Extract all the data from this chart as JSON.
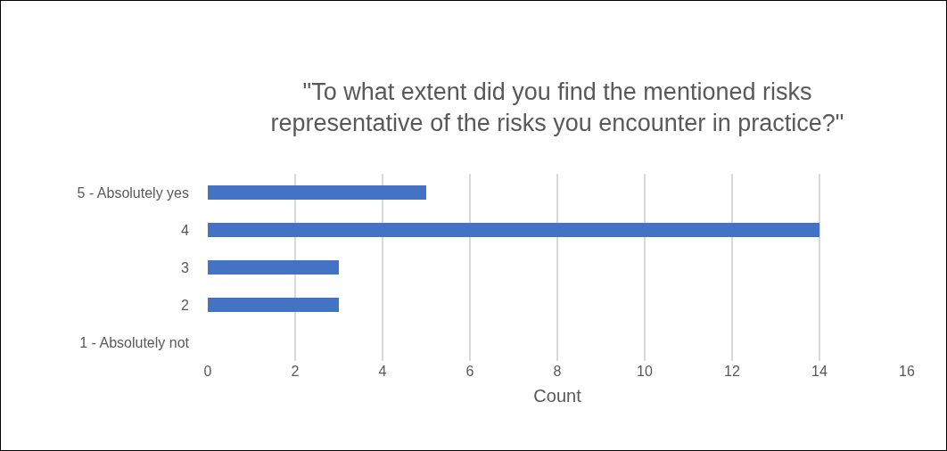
{
  "chart_data": {
    "type": "bar",
    "orientation": "horizontal",
    "title": "\"To what extent did you find the mentioned risks representative of the risks you encounter in practice?\"",
    "xlabel": "Count",
    "categories": [
      "5 - Absolutely yes",
      "4",
      "3",
      "2",
      "1 - Absolutely not"
    ],
    "values": [
      5,
      14,
      3,
      3,
      0
    ],
    "color": "#4472c4",
    "xlim": [
      0,
      16
    ],
    "xticks": [
      0,
      2,
      4,
      6,
      8,
      10,
      12,
      14,
      16
    ],
    "grid": "x"
  }
}
